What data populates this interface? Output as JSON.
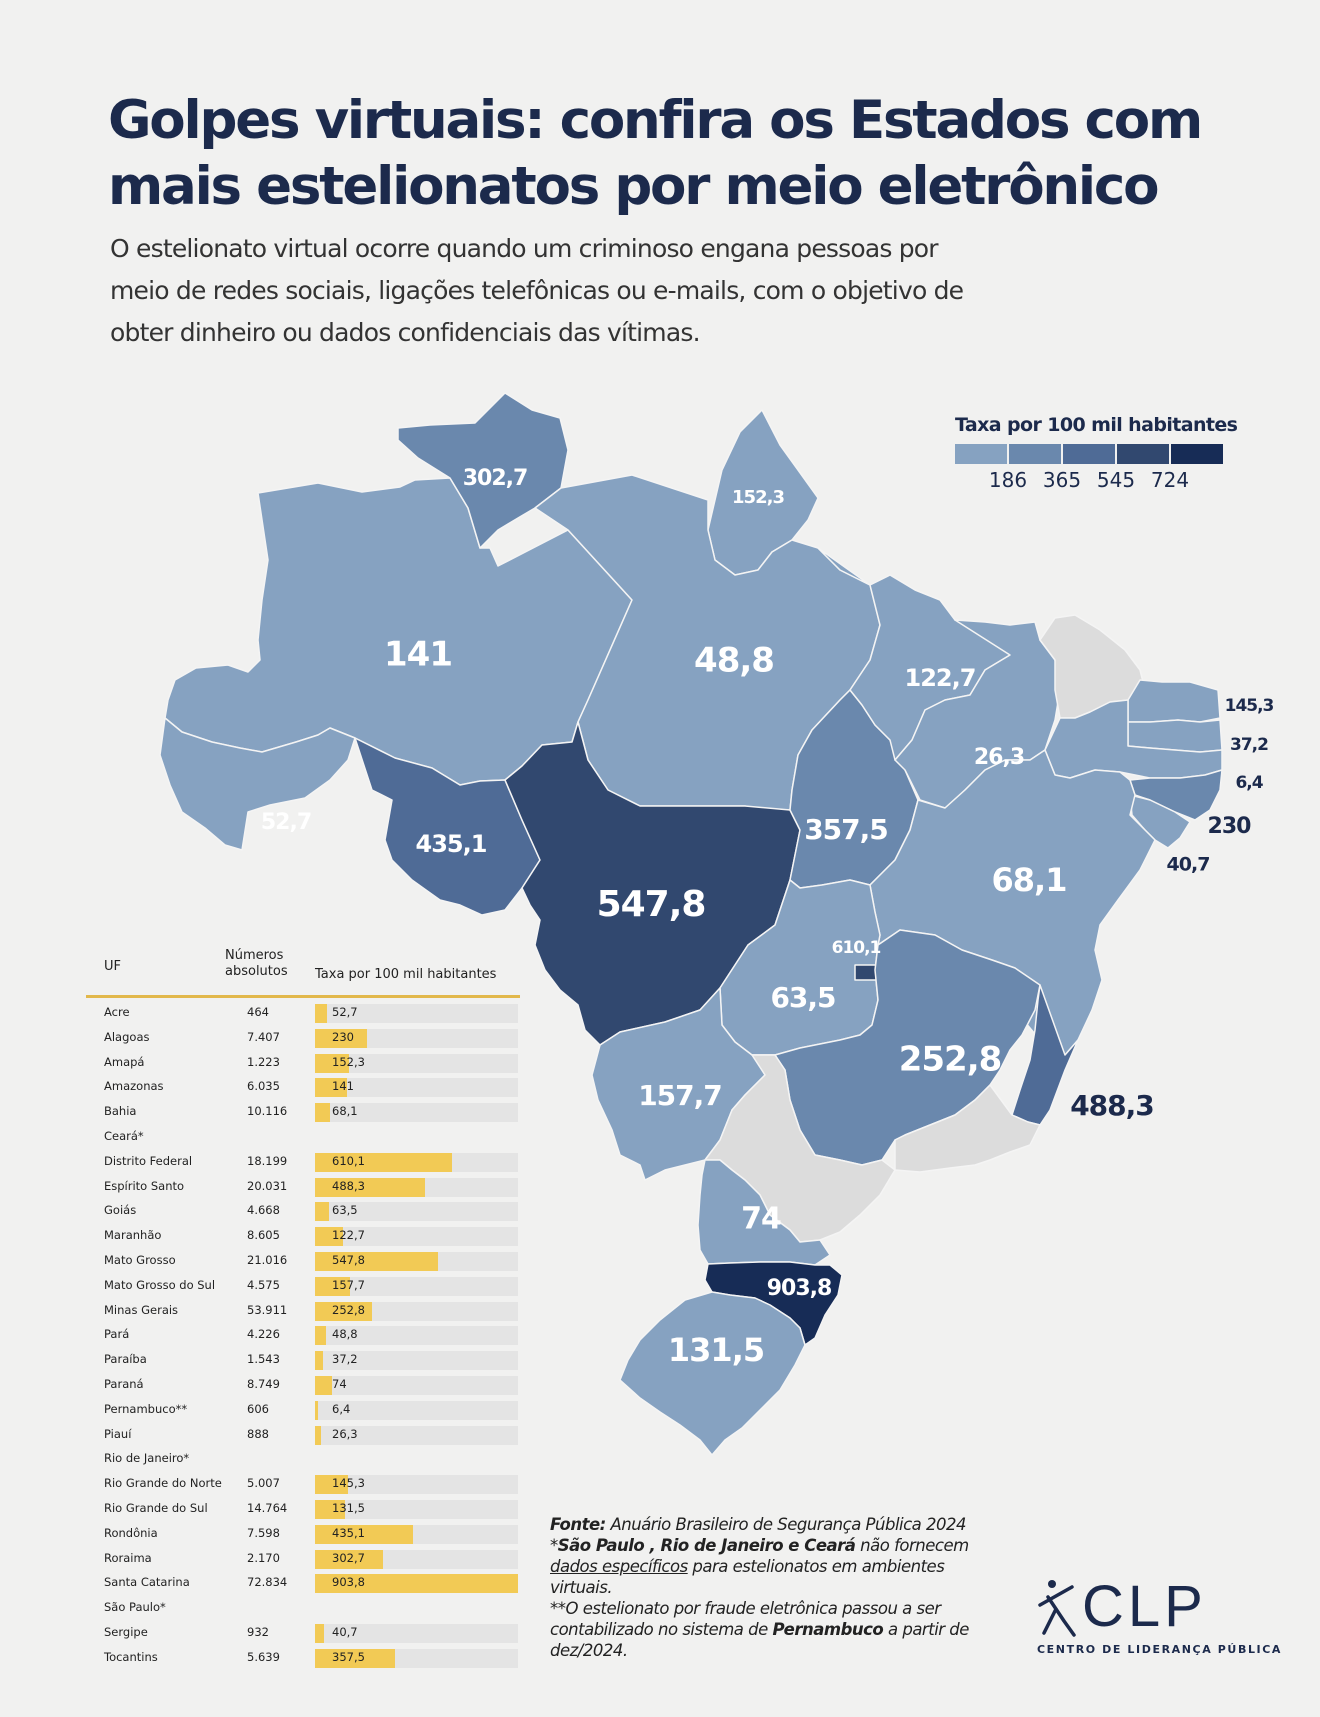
{
  "title_lines": [
    "Golpes virtuais: confira os Estados com",
    "mais estelionatos por meio eletrônico"
  ],
  "subtitle_lines": [
    "O estelionato virtual ocorre quando um criminoso engana pessoas por",
    "meio de redes sociais, ligações telefônicas ou e-mails, com o objetivo de",
    "obter dinheiro ou dados confidenciais das vítimas."
  ],
  "legend": {
    "title": "Taxa por 100 mil habitantes",
    "ticks": [
      "186",
      "365",
      "545",
      "724"
    ],
    "colors": [
      "#86a2c1",
      "#6a88ad",
      "#4f6b96",
      "#31486f",
      "#172c56"
    ]
  },
  "table": {
    "headers": {
      "uf": "UF",
      "abs_line1": "Números",
      "abs_line2": "absolutos",
      "rate": "Taxa por 100 mil habitantes"
    }
  },
  "chart_data": {
    "type": "table",
    "title": "Golpes virtuais: confira os Estados com mais estelionatos por meio eletrônico",
    "columns": [
      "UF",
      "Números absolutos",
      "Taxa por 100 mil habitantes"
    ],
    "max_rate": 903.8,
    "rows": [
      {
        "uf": "Acre",
        "abs": "464",
        "rate": "52,7",
        "value": 52.7
      },
      {
        "uf": "Alagoas",
        "abs": "7.407",
        "rate": "230",
        "value": 230
      },
      {
        "uf": "Amapá",
        "abs": "1.223",
        "rate": "152,3",
        "value": 152.3
      },
      {
        "uf": "Amazonas",
        "abs": "6.035",
        "rate": "141",
        "value": 141
      },
      {
        "uf": "Bahia",
        "abs": "10.116",
        "rate": "68,1",
        "value": 68.1
      },
      {
        "uf": "Ceará*",
        "abs": "",
        "rate": "",
        "value": null
      },
      {
        "uf": "Distrito Federal",
        "abs": "18.199",
        "rate": "610,1",
        "value": 610.1
      },
      {
        "uf": "Espírito Santo",
        "abs": "20.031",
        "rate": "488,3",
        "value": 488.3
      },
      {
        "uf": "Goiás",
        "abs": "4.668",
        "rate": "63,5",
        "value": 63.5
      },
      {
        "uf": "Maranhão",
        "abs": "8.605",
        "rate": "122,7",
        "value": 122.7
      },
      {
        "uf": "Mato Grosso",
        "abs": "21.016",
        "rate": "547,8",
        "value": 547.8
      },
      {
        "uf": "Mato Grosso do Sul",
        "abs": "4.575",
        "rate": "157,7",
        "value": 157.7
      },
      {
        "uf": "Minas Gerais",
        "abs": "53.911",
        "rate": "252,8",
        "value": 252.8
      },
      {
        "uf": "Pará",
        "abs": "4.226",
        "rate": "48,8",
        "value": 48.8
      },
      {
        "uf": "Paraíba",
        "abs": "1.543",
        "rate": "37,2",
        "value": 37.2
      },
      {
        "uf": "Paraná",
        "abs": "8.749",
        "rate": "74",
        "value": 74
      },
      {
        "uf": "Pernambuco**",
        "abs": "606",
        "rate": "6,4",
        "value": 6.4
      },
      {
        "uf": "Piauí",
        "abs": "888",
        "rate": "26,3",
        "value": 26.3
      },
      {
        "uf": "Rio de Janeiro*",
        "abs": "",
        "rate": "",
        "value": null
      },
      {
        "uf": "Rio Grande do Norte",
        "abs": "5.007",
        "rate": "145,3",
        "value": 145.3
      },
      {
        "uf": "Rio Grande do Sul",
        "abs": "14.764",
        "rate": "131,5",
        "value": 131.5
      },
      {
        "uf": "Rondônia",
        "abs": "7.598",
        "rate": "435,1",
        "value": 435.1
      },
      {
        "uf": "Roraima",
        "abs": "2.170",
        "rate": "302,7",
        "value": 302.7
      },
      {
        "uf": "Santa Catarina",
        "abs": "72.834",
        "rate": "903,8",
        "value": 903.8
      },
      {
        "uf": "São Paulo*",
        "abs": "",
        "rate": "",
        "value": null
      },
      {
        "uf": "Sergipe",
        "abs": "932",
        "rate": "40,7",
        "value": 40.7
      },
      {
        "uf": "Tocantins",
        "abs": "5.639",
        "rate": "357,5",
        "value": 357.5
      }
    ]
  },
  "map_regions": [
    {
      "state": "Amazonas",
      "label": "141",
      "color": "#86a2c1"
    },
    {
      "state": "Roraima",
      "label": "302,7",
      "color": "#6a88ad"
    },
    {
      "state": "Amapá",
      "label": "152,3",
      "color": "#86a2c1"
    },
    {
      "state": "Pará",
      "label": "48,8",
      "color": "#86a2c1"
    },
    {
      "state": "Acre",
      "label": "52,7",
      "color": "#86a2c1"
    },
    {
      "state": "Rondônia",
      "label": "435,1",
      "color": "#4f6b96"
    },
    {
      "state": "Mato Grosso",
      "label": "547,8",
      "color": "#31486f"
    },
    {
      "state": "Tocantins",
      "label": "357,5",
      "color": "#6a88ad"
    },
    {
      "state": "Maranhão",
      "label": "122,7",
      "color": "#86a2c1"
    },
    {
      "state": "Piauí",
      "label": "26,3",
      "color": "#86a2c1"
    },
    {
      "state": "Ceará",
      "label": "",
      "color": "#dcdcdc"
    },
    {
      "state": "Rio Grande do Norte",
      "label": "145,3",
      "color": "#86a2c1"
    },
    {
      "state": "Paraíba",
      "label": "37,2",
      "color": "#86a2c1"
    },
    {
      "state": "Pernambuco",
      "label": "6,4",
      "color": "#86a2c1"
    },
    {
      "state": "Alagoas",
      "label": "230",
      "color": "#6a88ad"
    },
    {
      "state": "Sergipe",
      "label": "40,7",
      "color": "#86a2c1"
    },
    {
      "state": "Bahia",
      "label": "68,1",
      "color": "#86a2c1"
    },
    {
      "state": "Goiás",
      "label": "63,5",
      "color": "#86a2c1"
    },
    {
      "state": "Distrito Federal",
      "label": "610,1",
      "color": "#31486f"
    },
    {
      "state": "Minas Gerais",
      "label": "252,8",
      "color": "#6a88ad"
    },
    {
      "state": "Espírito Santo",
      "label": "488,3",
      "color": "#4f6b96"
    },
    {
      "state": "Mato Grosso do Sul",
      "label": "157,7",
      "color": "#86a2c1"
    },
    {
      "state": "São Paulo",
      "label": "",
      "color": "#dcdcdc"
    },
    {
      "state": "Rio de Janeiro",
      "label": "",
      "color": "#dcdcdc"
    },
    {
      "state": "Paraná",
      "label": "74",
      "color": "#86a2c1"
    },
    {
      "state": "Santa Catarina",
      "label": "903,8",
      "color": "#172c56"
    },
    {
      "state": "Rio Grande do Sul",
      "label": "131,5",
      "color": "#86a2c1"
    }
  ],
  "source": {
    "fonte_label": "Fonte:",
    "fonte_text": " Anuário Brasileiro de Segurança Pública 2024",
    "note1_star": "*",
    "note1_bold": "São Paulo , Rio de Janeiro e Ceará",
    "note1_rest": " não fornecem",
    "note1_link": "dados específicos",
    "note1_rest2": " para estelionatos em ambientes",
    "note1_rest3": "virtuais.",
    "note2_line1": "**O estelionato por fraude eletrônica passou a ser",
    "note2_line2a": "contabilizado no sistema de ",
    "note2_bold": "Pernambuco",
    "note2_line2b": " a partir de",
    "note2_line3": "dez/2024."
  },
  "logo": {
    "text": "CLP",
    "subtitle": "CENTRO DE LIDERANÇA PÚBLICA"
  }
}
